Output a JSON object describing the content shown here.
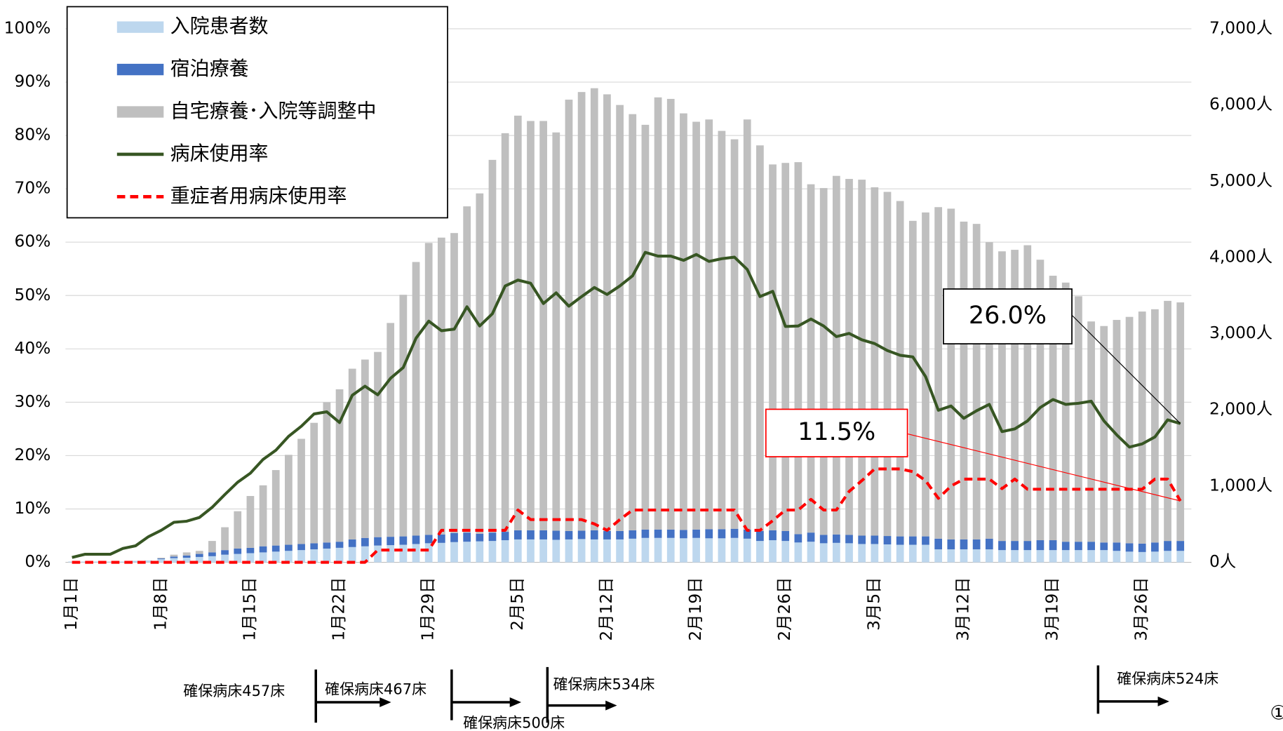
{
  "chart_data": {
    "type": "bar",
    "categories": [
      "1月1日",
      null,
      null,
      null,
      null,
      null,
      null,
      "1月8日",
      null,
      null,
      null,
      null,
      null,
      null,
      "1月15日",
      null,
      null,
      null,
      null,
      null,
      null,
      "1月22日",
      null,
      null,
      null,
      null,
      null,
      null,
      "1月29日",
      null,
      null,
      null,
      null,
      null,
      null,
      "2月5日",
      null,
      null,
      null,
      null,
      null,
      null,
      "2月12日",
      null,
      null,
      null,
      null,
      null,
      null,
      "2月19日",
      null,
      null,
      null,
      null,
      null,
      null,
      "2月26日",
      null,
      null,
      null,
      null,
      null,
      null,
      "3月5日",
      null,
      null,
      null,
      null,
      null,
      null,
      "3月12日",
      null,
      null,
      null,
      null,
      null,
      null,
      "3月19日",
      null,
      null,
      null,
      null,
      null,
      null,
      "3月26日",
      null,
      null,
      null
    ],
    "series": [
      {
        "name": "入院患者数",
        "type": "bar",
        "axis": "y2",
        "color": "#bdd7ee",
        "values": [
          10,
          10,
          10,
          10,
          10,
          20,
          25,
          40,
          55,
          60,
          70,
          80,
          100,
          110,
          120,
          130,
          140,
          150,
          160,
          170,
          180,
          190,
          200,
          210,
          220,
          225,
          230,
          240,
          250,
          255,
          265,
          270,
          275,
          280,
          290,
          300,
          300,
          300,
          295,
          300,
          305,
          300,
          300,
          300,
          310,
          320,
          320,
          320,
          315,
          320,
          315,
          315,
          320,
          310,
          280,
          290,
          280,
          260,
          270,
          250,
          255,
          250,
          240,
          240,
          235,
          230,
          230,
          230,
          170,
          170,
          170,
          170,
          170,
          160,
          160,
          160,
          160,
          160,
          160,
          160,
          160,
          160,
          150,
          140,
          135,
          140,
          150,
          150
        ]
      },
      {
        "name": "宿泊療養",
        "type": "bar",
        "axis": "y2",
        "color": "#4472c4",
        "values": [
          0,
          0,
          0,
          0,
          0,
          0,
          0,
          10,
          20,
          30,
          40,
          50,
          60,
          70,
          70,
          80,
          80,
          80,
          80,
          80,
          80,
          80,
          100,
          110,
          110,
          110,
          110,
          110,
          110,
          110,
          120,
          120,
          100,
          110,
          110,
          120,
          120,
          120,
          120,
          110,
          110,
          120,
          110,
          110,
          110,
          110,
          110,
          110,
          110,
          110,
          120,
          120,
          120,
          120,
          130,
          130,
          130,
          110,
          120,
          110,
          110,
          110,
          110,
          110,
          110,
          110,
          110,
          110,
          140,
          130,
          130,
          130,
          140,
          120,
          120,
          120,
          130,
          130,
          110,
          110,
          110,
          100,
          110,
          110,
          110,
          120,
          130,
          130
        ]
      },
      {
        "name": "自宅療養･入院等調整中",
        "type": "bar",
        "axis": "y2",
        "color": "#bfbfbf",
        "values": [
          0,
          0,
          0,
          0,
          0,
          0,
          0,
          10,
          25,
          40,
          40,
          150,
          300,
          490,
          680,
          800,
          990,
          1180,
          1380,
          1580,
          1840,
          2000,
          2240,
          2340,
          2430,
          2805,
          3170,
          3590,
          3830,
          3895,
          3935,
          4280,
          4465,
          4890,
          5230,
          5440,
          5370,
          5370,
          5225,
          5660,
          5755,
          5800,
          5730,
          5590,
          5460,
          5310,
          5670,
          5650,
          5465,
          5350,
          5375,
          5225,
          5110,
          5380,
          5060,
          4800,
          4830,
          4880,
          4570,
          4550,
          4705,
          4670,
          4670,
          4570,
          4515,
          4400,
          4140,
          4250,
          4350,
          4340,
          4170,
          4140,
          3890,
          3800,
          3820,
          3880,
          3680,
          3470,
          3400,
          3220,
          2890,
          2840,
          2920,
          2970,
          3045,
          3060,
          3150,
          3130
        ]
      },
      {
        "name": "病床使用率",
        "type": "line",
        "axis": "y",
        "color": "#375623",
        "dashed": false,
        "values": [
          0.9,
          1.5,
          1.5,
          1.5,
          2.6,
          3.1,
          4.8,
          6.0,
          7.5,
          7.7,
          8.4,
          10.3,
          12.7,
          15.0,
          16.7,
          19.3,
          21.0,
          23.6,
          25.5,
          27.8,
          28.2,
          26.2,
          31.3,
          33.0,
          31.4,
          34.5,
          36.5,
          42.0,
          45.2,
          43.4,
          43.7,
          47.9,
          44.3,
          46.6,
          51.8,
          52.9,
          52.3,
          48.5,
          50.5,
          48.0,
          49.8,
          51.5,
          50.2,
          51.8,
          53.7,
          58.1,
          57.4,
          57.4,
          56.6,
          57.7,
          56.4,
          56.9,
          57.2,
          54.9,
          49.8,
          50.8,
          44.2,
          44.3,
          45.6,
          44.3,
          42.3,
          42.9,
          41.7,
          41.0,
          39.7,
          38.8,
          38.5,
          34.8,
          28.5,
          29.3,
          27.0,
          28.4,
          29.6,
          24.5,
          25.0,
          26.5,
          29.0,
          30.5,
          29.6,
          29.8,
          30.2,
          26.5,
          23.9,
          21.6,
          22.2,
          23.5,
          26.7,
          26.0
        ],
        "value_labels": [
          null,
          null,
          null,
          null,
          null,
          null,
          null,
          null,
          null,
          null,
          null,
          null,
          null,
          null,
          null,
          null,
          null,
          null,
          null,
          null,
          null,
          null,
          null,
          null,
          null,
          null,
          null,
          null,
          null,
          null,
          null,
          null,
          null,
          null,
          null,
          null,
          null,
          null,
          null,
          null,
          null,
          null,
          null,
          null,
          null,
          null,
          null,
          null,
          null,
          null,
          null,
          null,
          null,
          null,
          null,
          null,
          null,
          null,
          null,
          null,
          null,
          null,
          null,
          null,
          null,
          null,
          null,
          null,
          null,
          null,
          null,
          null,
          null,
          null,
          null,
          null,
          null,
          null,
          null,
          null,
          null,
          null,
          null,
          null,
          null,
          null,
          null,
          "26.0%"
        ]
      },
      {
        "name": "重症者用病床使用率",
        "type": "line",
        "axis": "y",
        "color": "#ff0000",
        "dashed": true,
        "values": [
          0,
          0,
          0,
          0,
          0,
          0,
          0,
          0,
          0,
          0,
          0,
          0,
          0,
          0,
          0,
          0,
          0,
          0,
          0,
          0,
          0,
          0,
          0,
          0,
          2.3,
          2.3,
          2.3,
          2.3,
          2.3,
          6.0,
          6.0,
          6.0,
          6.0,
          6.0,
          6.0,
          9.8,
          8.0,
          8.0,
          8.0,
          8.0,
          8.0,
          7.2,
          6.0,
          8.0,
          9.8,
          9.8,
          9.8,
          9.8,
          9.8,
          9.8,
          9.8,
          9.8,
          9.8,
          6.0,
          6.0,
          7.8,
          9.8,
          9.8,
          11.8,
          9.8,
          9.8,
          13.3,
          15.3,
          17.5,
          17.5,
          17.5,
          17.0,
          15.3,
          12.0,
          14.3,
          15.6,
          15.6,
          15.6,
          13.8,
          15.6,
          13.7,
          13.7,
          13.7,
          13.7,
          13.7,
          13.7,
          13.7,
          13.7,
          13.7,
          13.7,
          15.6,
          15.6,
          11.5
        ],
        "value_labels": [
          null,
          null,
          null,
          null,
          null,
          null,
          null,
          null,
          null,
          null,
          null,
          null,
          null,
          null,
          null,
          null,
          null,
          null,
          null,
          null,
          null,
          null,
          null,
          null,
          null,
          null,
          null,
          null,
          null,
          null,
          null,
          null,
          null,
          null,
          null,
          null,
          null,
          null,
          null,
          null,
          null,
          null,
          null,
          null,
          null,
          null,
          null,
          null,
          null,
          null,
          null,
          null,
          null,
          null,
          null,
          null,
          null,
          null,
          null,
          null,
          null,
          null,
          null,
          null,
          null,
          null,
          null,
          null,
          null,
          null,
          null,
          null,
          null,
          null,
          null,
          null,
          null,
          null,
          null,
          null,
          null,
          null,
          null,
          null,
          null,
          null,
          null,
          "11.5%"
        ]
      }
    ],
    "ylim": [
      0,
      100
    ],
    "yticks": [
      {
        "value": 0,
        "label": "0%"
      },
      {
        "value": 10,
        "label": "10%"
      },
      {
        "value": 20,
        "label": "20%"
      },
      {
        "value": 30,
        "label": "30%"
      },
      {
        "value": 40,
        "label": "40%"
      },
      {
        "value": 50,
        "label": "50%"
      },
      {
        "value": 60,
        "label": "60%"
      },
      {
        "value": 70,
        "label": "70%"
      },
      {
        "value": 80,
        "label": "80%"
      },
      {
        "value": 90,
        "label": "90%"
      },
      {
        "value": 100,
        "label": "100%"
      }
    ],
    "y2lim": [
      0,
      7000
    ],
    "y2ticks": [
      {
        "value": 0,
        "label": "0人"
      },
      {
        "value": 1000,
        "label": "1,000人"
      },
      {
        "value": 2000,
        "label": "2,000人"
      },
      {
        "value": 3000,
        "label": "3,000人"
      },
      {
        "value": 4000,
        "label": "4,000人"
      },
      {
        "value": 5000,
        "label": "5,000人"
      },
      {
        "value": 6000,
        "label": "6,000人"
      },
      {
        "value": 7000,
        "label": "7,000人"
      }
    ],
    "grid": true,
    "legend": "upper left",
    "annotations": [
      "確保病床457床",
      "確保病床467床",
      "確保病床500床",
      "確保病床534床",
      "確保病床524床"
    ]
  },
  "page_mark": "①"
}
